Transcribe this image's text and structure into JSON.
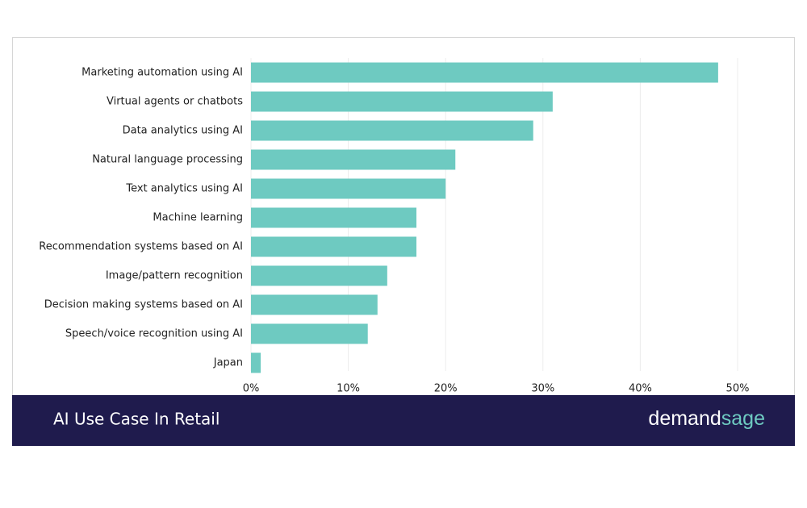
{
  "chart_data": {
    "type": "bar",
    "orientation": "horizontal",
    "title": "AI Use Case In Retail",
    "categories": [
      "Marketing automation using AI",
      "Virtual agents or chatbots",
      "Data analytics using AI",
      "Natural language processing",
      "Text analytics using AI",
      "Machine learning",
      "Recommendation systems based on AI",
      "Image/pattern recognition",
      "Decision making systems based on AI",
      "Speech/voice recognition using AI",
      "Japan"
    ],
    "values": [
      48,
      31,
      29,
      21,
      20,
      17,
      17,
      14,
      13,
      12,
      1
    ],
    "color": "#6ecac1",
    "xlim": [
      0,
      50
    ],
    "xticks": [
      {
        "value": 0,
        "label": "0%"
      },
      {
        "value": 10,
        "label": "10%"
      },
      {
        "value": 20,
        "label": "20%"
      },
      {
        "value": 30,
        "label": "30%"
      },
      {
        "value": 40,
        "label": "40%"
      },
      {
        "value": 50,
        "label": "50%"
      }
    ],
    "grid": true
  },
  "branding": {
    "logo_part1": "demand",
    "logo_part2": "sage"
  }
}
